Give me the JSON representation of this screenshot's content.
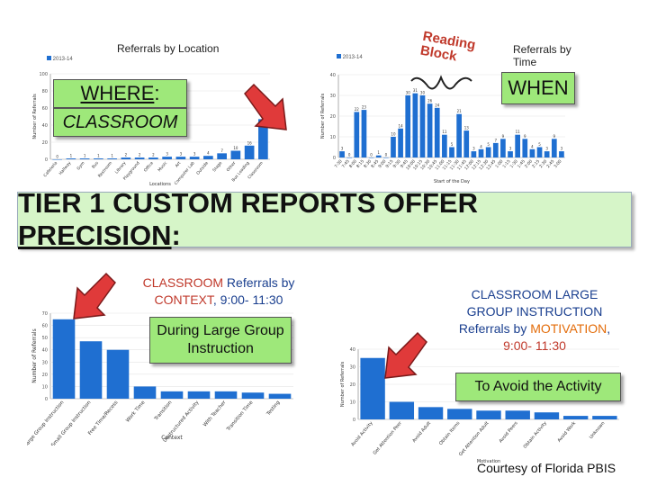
{
  "top_left": {
    "title": "Referrals by Location",
    "legend": "2013-14",
    "where_label": "WHERE",
    "where_colon": ":",
    "location_value": "CLASSROOM"
  },
  "top_right": {
    "title": "Referrals by Time",
    "legend": "2013-14",
    "reading_block": "Reading Block",
    "when_label": "WHEN"
  },
  "heading": {
    "prefix": "TIER 1 CUSTOM REPORTS OFFER ",
    "emphasis": "PRECISION",
    "suffix": ":"
  },
  "bottom_left": {
    "title_part1": "CLASSROOM",
    "title_part2": " Referrals by",
    "title_part3": "CONTEXT",
    "title_part4": ", 9:00- 11:30",
    "callout": "During Large Group Instruction"
  },
  "bottom_right": {
    "title_line1": "CLASSROOM LARGE",
    "title_line2": "GROUP INSTRUCTION",
    "title_line3a": "Referrals by ",
    "title_line3b": "MOTIVATION",
    "title_line3c": ",",
    "title_line4": "9:00- 11:30",
    "callout": "To Avoid the Activity"
  },
  "credit": "Courtesy of Florida PBIS",
  "colors": {
    "bar": "#1f6fd1",
    "callout_green": "#9ee87a",
    "arrow_red": "#e03a3a",
    "highlight_red": "#c0392b"
  },
  "chart_data": [
    {
      "type": "bar",
      "ylabel": "Number of Referrals",
      "xlabel": "Locations",
      "ylim": [
        0,
        100
      ],
      "categories": [
        "Cafeteria",
        "Hallway",
        "Gym",
        "Bus",
        "Restroom",
        "Library",
        "Playground",
        "Office",
        "Music",
        "Art",
        "Computer Lab",
        "Outside",
        "Stage",
        "Other",
        "Bus Loading",
        "Classroom"
      ],
      "values": [
        0,
        1,
        1,
        1,
        1,
        2,
        2,
        2,
        3,
        3,
        3,
        4,
        7,
        10,
        16,
        47
      ]
    },
    {
      "type": "bar",
      "ylabel": "Number of Referrals",
      "xlabel": "Start of the Day",
      "ylim": [
        0,
        40
      ],
      "categories": [
        "7:30",
        "7:45",
        "8:00",
        "8:15",
        "8:30",
        "8:45",
        "9:00",
        "9:15",
        "9:30",
        "9:45",
        "10:00",
        "10:15",
        "10:30",
        "10:45",
        "11:00",
        "11:15",
        "11:30",
        "11:45",
        "12:00",
        "12:15",
        "12:30",
        "12:45",
        "1:00",
        "1:15",
        "1:30",
        "1:45",
        "2:00",
        "2:15",
        "2:30",
        "2:45",
        "3:00"
      ],
      "values": [
        3,
        0,
        22,
        23,
        0,
        1,
        0,
        10,
        14,
        30,
        31,
        30,
        26,
        24,
        11,
        5,
        21,
        13,
        3,
        4,
        5,
        7,
        9,
        3,
        11,
        9,
        4,
        5,
        3,
        9,
        3
      ]
    },
    {
      "type": "bar",
      "ylabel": "Number of Referrals",
      "xlabel": "Context",
      "ylim": [
        0,
        70
      ],
      "categories": [
        "Large Group Instruction",
        "Small Group Instruction",
        "Free Time/Recess",
        "Work Time",
        "Transition",
        "Unstructured Activity",
        "With Teacher",
        "Transition Time",
        "Testing"
      ],
      "values": [
        65,
        47,
        40,
        10,
        6,
        6,
        6,
        5,
        4
      ]
    },
    {
      "type": "bar",
      "ylabel": "Number of Referrals",
      "xlabel": "Motivation",
      "ylim": [
        0,
        40
      ],
      "categories": [
        "Avoid Activity",
        "Get Attention Peer",
        "Avoid Adult",
        "Obtain Items",
        "Get Attention Adult",
        "Avoid Peers",
        "Obtain Activity",
        "Avoid Work",
        "Unknown"
      ],
      "values": [
        35,
        10,
        7,
        6,
        5,
        5,
        4,
        2,
        2
      ]
    }
  ]
}
